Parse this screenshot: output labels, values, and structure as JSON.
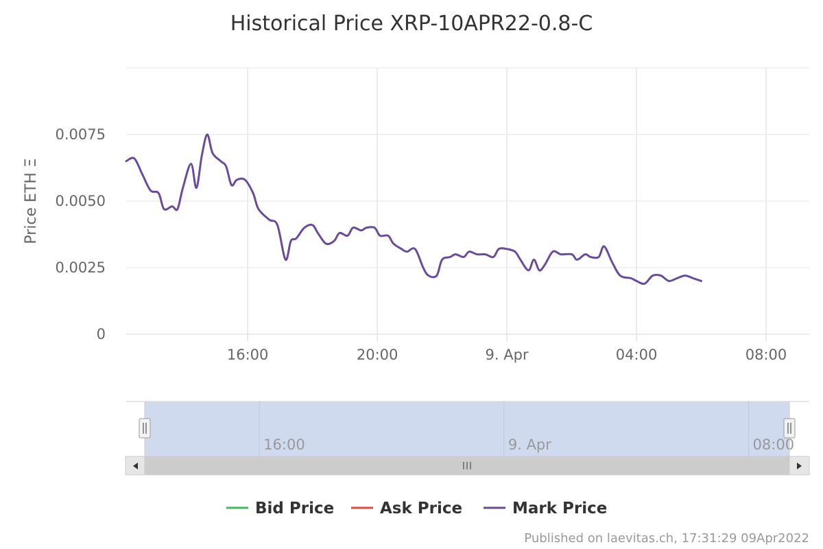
{
  "chart_data": {
    "type": "line",
    "title": "Historical Price XRP-10APR22-0.8-C",
    "ylabel": "Price ETH Ξ",
    "xlabel": "",
    "ylim": [
      0,
      0.01
    ],
    "xlim": [
      "2022-04-08 12:15",
      "2022-04-09 09:20"
    ],
    "y_ticks": [
      "0",
      "0.0025",
      "0.0050",
      "0.0075"
    ],
    "x_ticks": [
      {
        "at": "2022-04-08 16:00",
        "label": "16:00"
      },
      {
        "at": "2022-04-08 20:00",
        "label": "20:00"
      },
      {
        "at": "2022-04-09 00:00",
        "label": "9. Apr"
      },
      {
        "at": "2022-04-09 04:00",
        "label": "04:00"
      },
      {
        "at": "2022-04-09 08:00",
        "label": "08:00"
      }
    ],
    "grid": true,
    "legend_position": "bottom",
    "series": [
      {
        "name": "Bid Price",
        "color": "#3dbb58",
        "points": []
      },
      {
        "name": "Ask Price",
        "color": "#e04d3c",
        "points": []
      },
      {
        "name": "Mark Price",
        "color": "#6a4a9c",
        "points": [
          [
            "2022-04-08 12:15",
            0.0065
          ],
          [
            "2022-04-08 12:30",
            0.0066
          ],
          [
            "2022-04-08 12:45",
            0.006
          ],
          [
            "2022-04-08 13:00",
            0.0054
          ],
          [
            "2022-04-08 13:15",
            0.0053
          ],
          [
            "2022-04-08 13:25",
            0.0047
          ],
          [
            "2022-04-08 13:40",
            0.0048
          ],
          [
            "2022-04-08 13:50",
            0.0047
          ],
          [
            "2022-04-08 14:00",
            0.0055
          ],
          [
            "2022-04-08 14:15",
            0.0064
          ],
          [
            "2022-04-08 14:25",
            0.0055
          ],
          [
            "2022-04-08 14:35",
            0.0067
          ],
          [
            "2022-04-08 14:45",
            0.0075
          ],
          [
            "2022-04-08 14:55",
            0.0068
          ],
          [
            "2022-04-08 15:10",
            0.0065
          ],
          [
            "2022-04-08 15:20",
            0.0063
          ],
          [
            "2022-04-08 15:30",
            0.0056
          ],
          [
            "2022-04-08 15:40",
            0.0058
          ],
          [
            "2022-04-08 15:55",
            0.0058
          ],
          [
            "2022-04-08 16:10",
            0.0053
          ],
          [
            "2022-04-08 16:20",
            0.0047
          ],
          [
            "2022-04-08 16:40",
            0.0043
          ],
          [
            "2022-04-08 16:55",
            0.0041
          ],
          [
            "2022-04-08 17:10",
            0.0028
          ],
          [
            "2022-04-08 17:20",
            0.0035
          ],
          [
            "2022-04-08 17:30",
            0.0036
          ],
          [
            "2022-04-08 17:45",
            0.004
          ],
          [
            "2022-04-08 18:00",
            0.0041
          ],
          [
            "2022-04-08 18:10",
            0.0038
          ],
          [
            "2022-04-08 18:25",
            0.0034
          ],
          [
            "2022-04-08 18:40",
            0.0035
          ],
          [
            "2022-04-08 18:50",
            0.0038
          ],
          [
            "2022-04-08 19:05",
            0.0037
          ],
          [
            "2022-04-08 19:15",
            0.004
          ],
          [
            "2022-04-08 19:30",
            0.0039
          ],
          [
            "2022-04-08 19:40",
            0.004
          ],
          [
            "2022-04-08 19:55",
            0.004
          ],
          [
            "2022-04-08 20:05",
            0.0037
          ],
          [
            "2022-04-08 20:20",
            0.0037
          ],
          [
            "2022-04-08 20:30",
            0.0034
          ],
          [
            "2022-04-08 20:45",
            0.0032
          ],
          [
            "2022-04-08 20:55",
            0.0031
          ],
          [
            "2022-04-08 21:10",
            0.0032
          ],
          [
            "2022-04-08 21:25",
            0.0025
          ],
          [
            "2022-04-08 21:35",
            0.0022
          ],
          [
            "2022-04-08 21:50",
            0.0022
          ],
          [
            "2022-04-08 22:00",
            0.0028
          ],
          [
            "2022-04-08 22:15",
            0.0029
          ],
          [
            "2022-04-08 22:25",
            0.003
          ],
          [
            "2022-04-08 22:40",
            0.0029
          ],
          [
            "2022-04-08 22:50",
            0.0031
          ],
          [
            "2022-04-08 23:05",
            0.003
          ],
          [
            "2022-04-08 23:20",
            0.003
          ],
          [
            "2022-04-08 23:35",
            0.0029
          ],
          [
            "2022-04-08 23:45",
            0.0032
          ],
          [
            "2022-04-09 00:00",
            0.0032
          ],
          [
            "2022-04-09 00:15",
            0.0031
          ],
          [
            "2022-04-09 00:25",
            0.0028
          ],
          [
            "2022-04-09 00:40",
            0.0024
          ],
          [
            "2022-04-09 00:50",
            0.0028
          ],
          [
            "2022-04-09 01:00",
            0.0024
          ],
          [
            "2022-04-09 01:10",
            0.0026
          ],
          [
            "2022-04-09 01:25",
            0.0031
          ],
          [
            "2022-04-09 01:40",
            0.003
          ],
          [
            "2022-04-09 02:00",
            0.003
          ],
          [
            "2022-04-09 02:10",
            0.0028
          ],
          [
            "2022-04-09 02:25",
            0.003
          ],
          [
            "2022-04-09 02:35",
            0.0029
          ],
          [
            "2022-04-09 02:50",
            0.0029
          ],
          [
            "2022-04-09 03:00",
            0.0033
          ],
          [
            "2022-04-09 03:15",
            0.0027
          ],
          [
            "2022-04-09 03:30",
            0.0022
          ],
          [
            "2022-04-09 03:50",
            0.0021
          ],
          [
            "2022-04-09 04:00",
            0.002
          ],
          [
            "2022-04-09 04:15",
            0.0019
          ],
          [
            "2022-04-09 04:30",
            0.0022
          ],
          [
            "2022-04-09 04:45",
            0.0022
          ],
          [
            "2022-04-09 05:00",
            0.002
          ],
          [
            "2022-04-09 05:15",
            0.0021
          ],
          [
            "2022-04-09 05:30",
            0.0022
          ],
          [
            "2022-04-09 05:45",
            0.0021
          ],
          [
            "2022-04-09 06:00",
            0.002
          ]
        ]
      }
    ],
    "navigator": {
      "labels": [
        {
          "at": "2022-04-08 16:00",
          "label": "16:00"
        },
        {
          "at": "2022-04-09 00:00",
          "label": "9. Apr"
        },
        {
          "at": "2022-04-09 08:00",
          "label": "08:00"
        }
      ]
    }
  },
  "credit": "Published on laevitas.ch, 17:31:29 09Apr2022",
  "icons": {
    "scroll_left": "arrow-left-icon",
    "scroll_right": "arrow-right-icon",
    "scroll_grip": "grip-icon",
    "handle": "navigator-handle-icon"
  }
}
